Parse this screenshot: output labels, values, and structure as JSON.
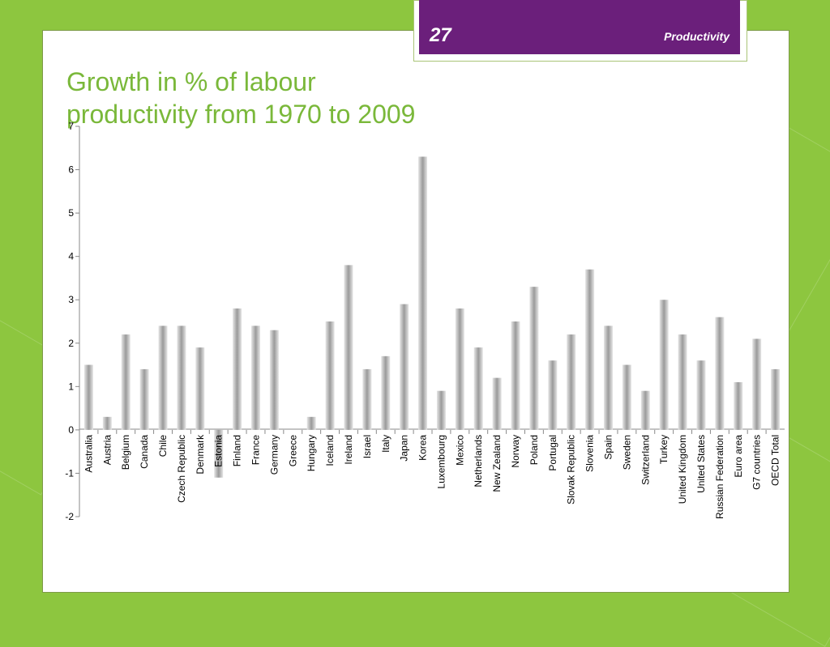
{
  "slide": {
    "number": "27",
    "section": "Productivity",
    "title_line1": "Growth in % of labour",
    "title_line2": "productivity from 1970 to 2009"
  },
  "colors": {
    "background": "#8dc63f",
    "header": "#6b1f7b",
    "title": "#7ab83a",
    "bar": "#a8a8a8"
  },
  "chart_data": {
    "type": "bar",
    "title": "",
    "xlabel": "",
    "ylabel": "",
    "ylim": [
      -2,
      7
    ],
    "y_ticks": [
      "-2",
      "-1",
      "0",
      "1",
      "2",
      "3",
      "4",
      "5",
      "6",
      "7"
    ],
    "categories": [
      "Australia",
      "Austria",
      "Belgium",
      "Canada",
      "Chile",
      "Czech Republic",
      "Denmark",
      "Estonia",
      "Finland",
      "France",
      "Germany",
      "Greece",
      "Hungary",
      "Iceland",
      "Ireland",
      "Israel",
      "Italy",
      "Japan",
      "Korea",
      "Luxembourg",
      "Mexico",
      "Netherlands",
      "New Zealand",
      "Norway",
      "Poland",
      "Portugal",
      "Slovak Republic",
      "Slovenia",
      "Spain",
      "Sweden",
      "Switzerland",
      "Turkey",
      "United Kingdom",
      "United States",
      "Russian Federation",
      "Euro area",
      "G7 countries",
      "OECD Total"
    ],
    "values": [
      1.5,
      0.3,
      2.2,
      1.4,
      2.4,
      2.4,
      1.9,
      -1.1,
      2.8,
      2.4,
      2.3,
      0,
      0.3,
      2.5,
      3.8,
      1.4,
      1.7,
      2.9,
      6.3,
      0.9,
      2.8,
      1.9,
      1.2,
      2.5,
      3.3,
      1.6,
      2.2,
      3.7,
      2.4,
      1.5,
      0.9,
      3.0,
      2.2,
      1.6,
      2.6,
      1.1,
      2.1,
      1.4
    ],
    "grid": false,
    "legend": "none"
  }
}
